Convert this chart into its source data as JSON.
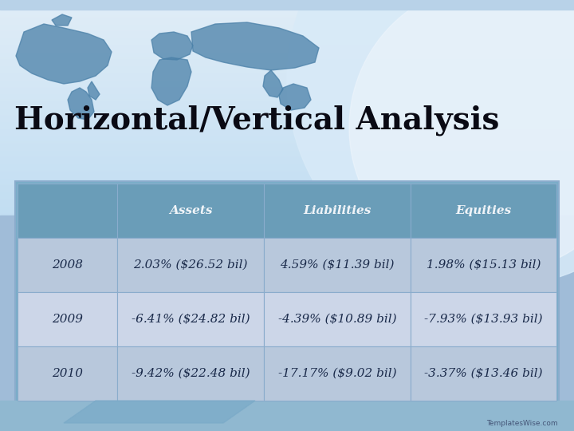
{
  "title": "Horizontal/Vertical Analysis",
  "header_row": [
    "",
    "Assets",
    "Liabilities",
    "Equities"
  ],
  "rows": [
    [
      "2008",
      "2.03% ($26.52 bil)",
      "4.59% ($11.39 bil)",
      "1.98% ($15.13 bil)"
    ],
    [
      "2009",
      "-6.41% ($24.82 bil)",
      "-4.39% ($10.89 bil)",
      "-7.93% ($13.93 bil)"
    ],
    [
      "2010",
      "-9.42% ($22.48 bil)",
      "-17.17% ($9.02 bil)",
      "-3.37% ($13.46 bil)"
    ]
  ],
  "header_bg": "#6a9db8",
  "row_bg_even": "#b8c8dc",
  "row_bg_odd": "#ccd6e8",
  "header_text_color": "#f0f4f8",
  "row_text_color": "#1a2a4a",
  "title_color": "#0a0a14",
  "bg_sky_top": "#c8dff0",
  "bg_sky_mid": "#daeaf8",
  "bg_sky_bottom": "#e8f2fc",
  "table_outer_bg": "#7aaec8",
  "table_border_color": "#8aaccc",
  "title_fontsize": 28,
  "header_fontsize": 11,
  "cell_fontsize": 11,
  "fig_width": 7.2,
  "fig_height": 5.4,
  "map_color": "#4a80a8",
  "globe_color": "#d8eaf8",
  "top_stripe_color": "#b0cce0",
  "bottom_area_color": "#a8c8e0"
}
